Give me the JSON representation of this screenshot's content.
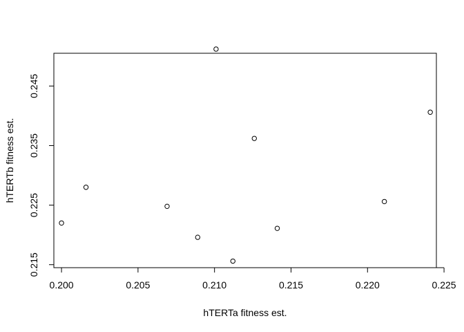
{
  "chart_data": {
    "type": "scatter",
    "title": "",
    "xlabel": "hTERTa fitness est.",
    "ylabel": "hTERTb fitness est.",
    "xlim": [
      0.1995,
      0.2245
    ],
    "ylim": [
      0.2145,
      0.2505
    ],
    "xticks": [
      "0.200",
      "0.205",
      "0.210",
      "0.215",
      "0.220",
      "0.225"
    ],
    "yticks": [
      "0.215",
      "0.225",
      "0.235",
      "0.245"
    ],
    "grid": false,
    "legend": "none",
    "marker": "open-circle",
    "point_color": "#000000",
    "x": [
      0.2,
      0.2016,
      0.2069,
      0.2089,
      0.2101,
      0.2112,
      0.2126,
      0.2141,
      0.2211,
      0.2241
    ],
    "y": [
      0.222,
      0.228,
      0.2248,
      0.2196,
      0.2512,
      0.2156,
      0.2362,
      0.2211,
      0.2256,
      0.2406
    ]
  }
}
